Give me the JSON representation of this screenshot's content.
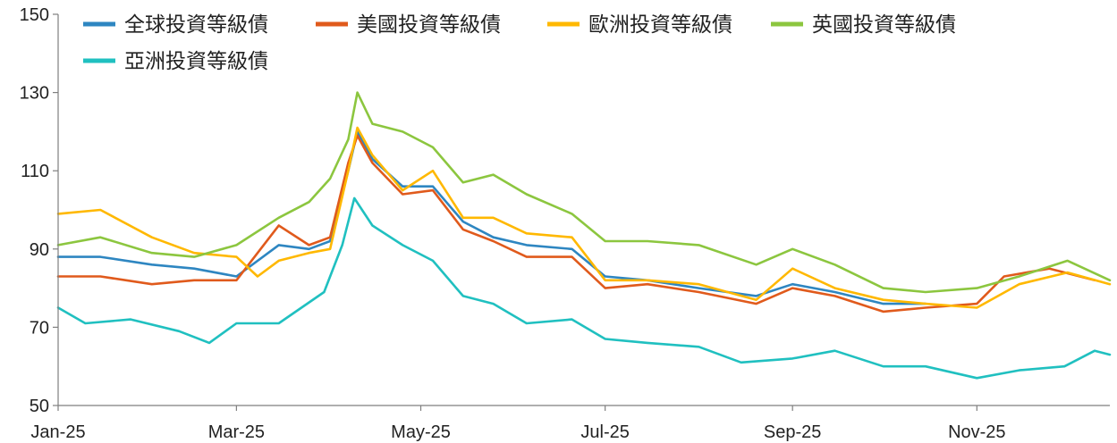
{
  "chart_data": {
    "type": "line",
    "title": "",
    "xlabel": "",
    "ylabel": "",
    "x_range": [
      "2025-01-01",
      "2025-12-15"
    ],
    "ylim": [
      50,
      150
    ],
    "yticks": [
      50,
      70,
      90,
      110,
      130,
      150
    ],
    "xtick_labels": [
      "Jan-25",
      "Mar-25",
      "May-25",
      "Jul-25",
      "Sep-25",
      "Nov-25"
    ],
    "xtick_dates": [
      "2025-01-01",
      "2025-03-01",
      "2025-05-01",
      "2025-07-01",
      "2025-09-01",
      "2025-11-01"
    ],
    "grid": false,
    "legend_position": "top-left",
    "series": [
      {
        "name": "全球投資等級債",
        "color": "#2E86C1",
        "points": [
          [
            "2025-01-01",
            88
          ],
          [
            "2025-01-15",
            88
          ],
          [
            "2025-02-01",
            86
          ],
          [
            "2025-02-15",
            85
          ],
          [
            "2025-03-01",
            83
          ],
          [
            "2025-03-15",
            91
          ],
          [
            "2025-03-25",
            90
          ],
          [
            "2025-04-01",
            92
          ],
          [
            "2025-04-07",
            110
          ],
          [
            "2025-04-10",
            120
          ],
          [
            "2025-04-15",
            113
          ],
          [
            "2025-04-25",
            106
          ],
          [
            "2025-05-05",
            106
          ],
          [
            "2025-05-15",
            97
          ],
          [
            "2025-05-25",
            93
          ],
          [
            "2025-06-05",
            91
          ],
          [
            "2025-06-20",
            90
          ],
          [
            "2025-07-01",
            83
          ],
          [
            "2025-07-15",
            82
          ],
          [
            "2025-08-01",
            80
          ],
          [
            "2025-08-20",
            78
          ],
          [
            "2025-09-01",
            81
          ],
          [
            "2025-09-15",
            79
          ],
          [
            "2025-10-01",
            76
          ],
          [
            "2025-10-15",
            76
          ]
        ]
      },
      {
        "name": "美國投資等級債",
        "color": "#E05A1C",
        "points": [
          [
            "2025-01-01",
            83
          ],
          [
            "2025-01-15",
            83
          ],
          [
            "2025-02-01",
            81
          ],
          [
            "2025-02-15",
            82
          ],
          [
            "2025-03-01",
            82
          ],
          [
            "2025-03-15",
            96
          ],
          [
            "2025-03-25",
            91
          ],
          [
            "2025-04-01",
            93
          ],
          [
            "2025-04-07",
            112
          ],
          [
            "2025-04-10",
            119
          ],
          [
            "2025-04-15",
            112
          ],
          [
            "2025-04-25",
            104
          ],
          [
            "2025-05-05",
            105
          ],
          [
            "2025-05-15",
            95
          ],
          [
            "2025-05-25",
            92
          ],
          [
            "2025-06-05",
            88
          ],
          [
            "2025-06-20",
            88
          ],
          [
            "2025-07-01",
            80
          ],
          [
            "2025-07-15",
            81
          ],
          [
            "2025-08-01",
            79
          ],
          [
            "2025-08-20",
            76
          ],
          [
            "2025-09-01",
            80
          ],
          [
            "2025-09-15",
            78
          ],
          [
            "2025-10-01",
            74
          ],
          [
            "2025-10-15",
            75
          ],
          [
            "2025-11-01",
            76
          ],
          [
            "2025-11-10",
            83
          ],
          [
            "2025-11-25",
            85
          ],
          [
            "2025-12-10",
            82
          ]
        ]
      },
      {
        "name": "歐洲投資等級債",
        "color": "#FFB800",
        "points": [
          [
            "2025-01-01",
            99
          ],
          [
            "2025-01-15",
            100
          ],
          [
            "2025-02-01",
            93
          ],
          [
            "2025-02-15",
            89
          ],
          [
            "2025-03-01",
            88
          ],
          [
            "2025-03-08",
            83
          ],
          [
            "2025-03-15",
            87
          ],
          [
            "2025-03-25",
            89
          ],
          [
            "2025-04-01",
            90
          ],
          [
            "2025-04-07",
            110
          ],
          [
            "2025-04-10",
            121
          ],
          [
            "2025-04-15",
            114
          ],
          [
            "2025-04-25",
            105
          ],
          [
            "2025-05-05",
            110
          ],
          [
            "2025-05-15",
            98
          ],
          [
            "2025-05-25",
            98
          ],
          [
            "2025-06-05",
            94
          ],
          [
            "2025-06-20",
            93
          ],
          [
            "2025-07-01",
            82
          ],
          [
            "2025-07-15",
            82
          ],
          [
            "2025-08-01",
            81
          ],
          [
            "2025-08-20",
            77
          ],
          [
            "2025-09-01",
            85
          ],
          [
            "2025-09-15",
            80
          ],
          [
            "2025-10-01",
            77
          ],
          [
            "2025-10-15",
            76
          ],
          [
            "2025-11-01",
            75
          ],
          [
            "2025-11-15",
            81
          ],
          [
            "2025-12-01",
            84
          ],
          [
            "2025-12-15",
            81
          ]
        ]
      },
      {
        "name": "英國投資等級債",
        "color": "#8CC63F",
        "points": [
          [
            "2025-01-01",
            91
          ],
          [
            "2025-01-15",
            93
          ],
          [
            "2025-02-01",
            89
          ],
          [
            "2025-02-15",
            88
          ],
          [
            "2025-03-01",
            91
          ],
          [
            "2025-03-15",
            98
          ],
          [
            "2025-03-25",
            102
          ],
          [
            "2025-04-01",
            108
          ],
          [
            "2025-04-07",
            118
          ],
          [
            "2025-04-10",
            130
          ],
          [
            "2025-04-15",
            122
          ],
          [
            "2025-04-25",
            120
          ],
          [
            "2025-05-05",
            116
          ],
          [
            "2025-05-15",
            107
          ],
          [
            "2025-05-25",
            109
          ],
          [
            "2025-06-05",
            104
          ],
          [
            "2025-06-20",
            99
          ],
          [
            "2025-07-01",
            92
          ],
          [
            "2025-07-15",
            92
          ],
          [
            "2025-08-01",
            91
          ],
          [
            "2025-08-20",
            86
          ],
          [
            "2025-09-01",
            90
          ],
          [
            "2025-09-15",
            86
          ],
          [
            "2025-10-01",
            80
          ],
          [
            "2025-10-15",
            79
          ],
          [
            "2025-11-01",
            80
          ],
          [
            "2025-11-15",
            83
          ],
          [
            "2025-12-01",
            87
          ],
          [
            "2025-12-15",
            82
          ]
        ]
      },
      {
        "name": "亞洲投資等級債",
        "color": "#20C0C0",
        "points": [
          [
            "2025-01-01",
            75
          ],
          [
            "2025-01-10",
            71
          ],
          [
            "2025-01-25",
            72
          ],
          [
            "2025-02-10",
            69
          ],
          [
            "2025-02-20",
            66
          ],
          [
            "2025-03-01",
            71
          ],
          [
            "2025-03-15",
            71
          ],
          [
            "2025-03-30",
            79
          ],
          [
            "2025-04-05",
            91
          ],
          [
            "2025-04-09",
            103
          ],
          [
            "2025-04-15",
            96
          ],
          [
            "2025-04-25",
            91
          ],
          [
            "2025-05-05",
            87
          ],
          [
            "2025-05-15",
            78
          ],
          [
            "2025-05-25",
            76
          ],
          [
            "2025-06-05",
            71
          ],
          [
            "2025-06-20",
            72
          ],
          [
            "2025-07-01",
            67
          ],
          [
            "2025-07-15",
            66
          ],
          [
            "2025-08-01",
            65
          ],
          [
            "2025-08-15",
            61
          ],
          [
            "2025-09-01",
            62
          ],
          [
            "2025-09-15",
            64
          ],
          [
            "2025-10-01",
            60
          ],
          [
            "2025-10-15",
            60
          ],
          [
            "2025-11-01",
            57
          ],
          [
            "2025-11-15",
            59
          ],
          [
            "2025-11-30",
            60
          ],
          [
            "2025-12-10",
            64
          ],
          [
            "2025-12-15",
            63
          ]
        ]
      }
    ]
  }
}
